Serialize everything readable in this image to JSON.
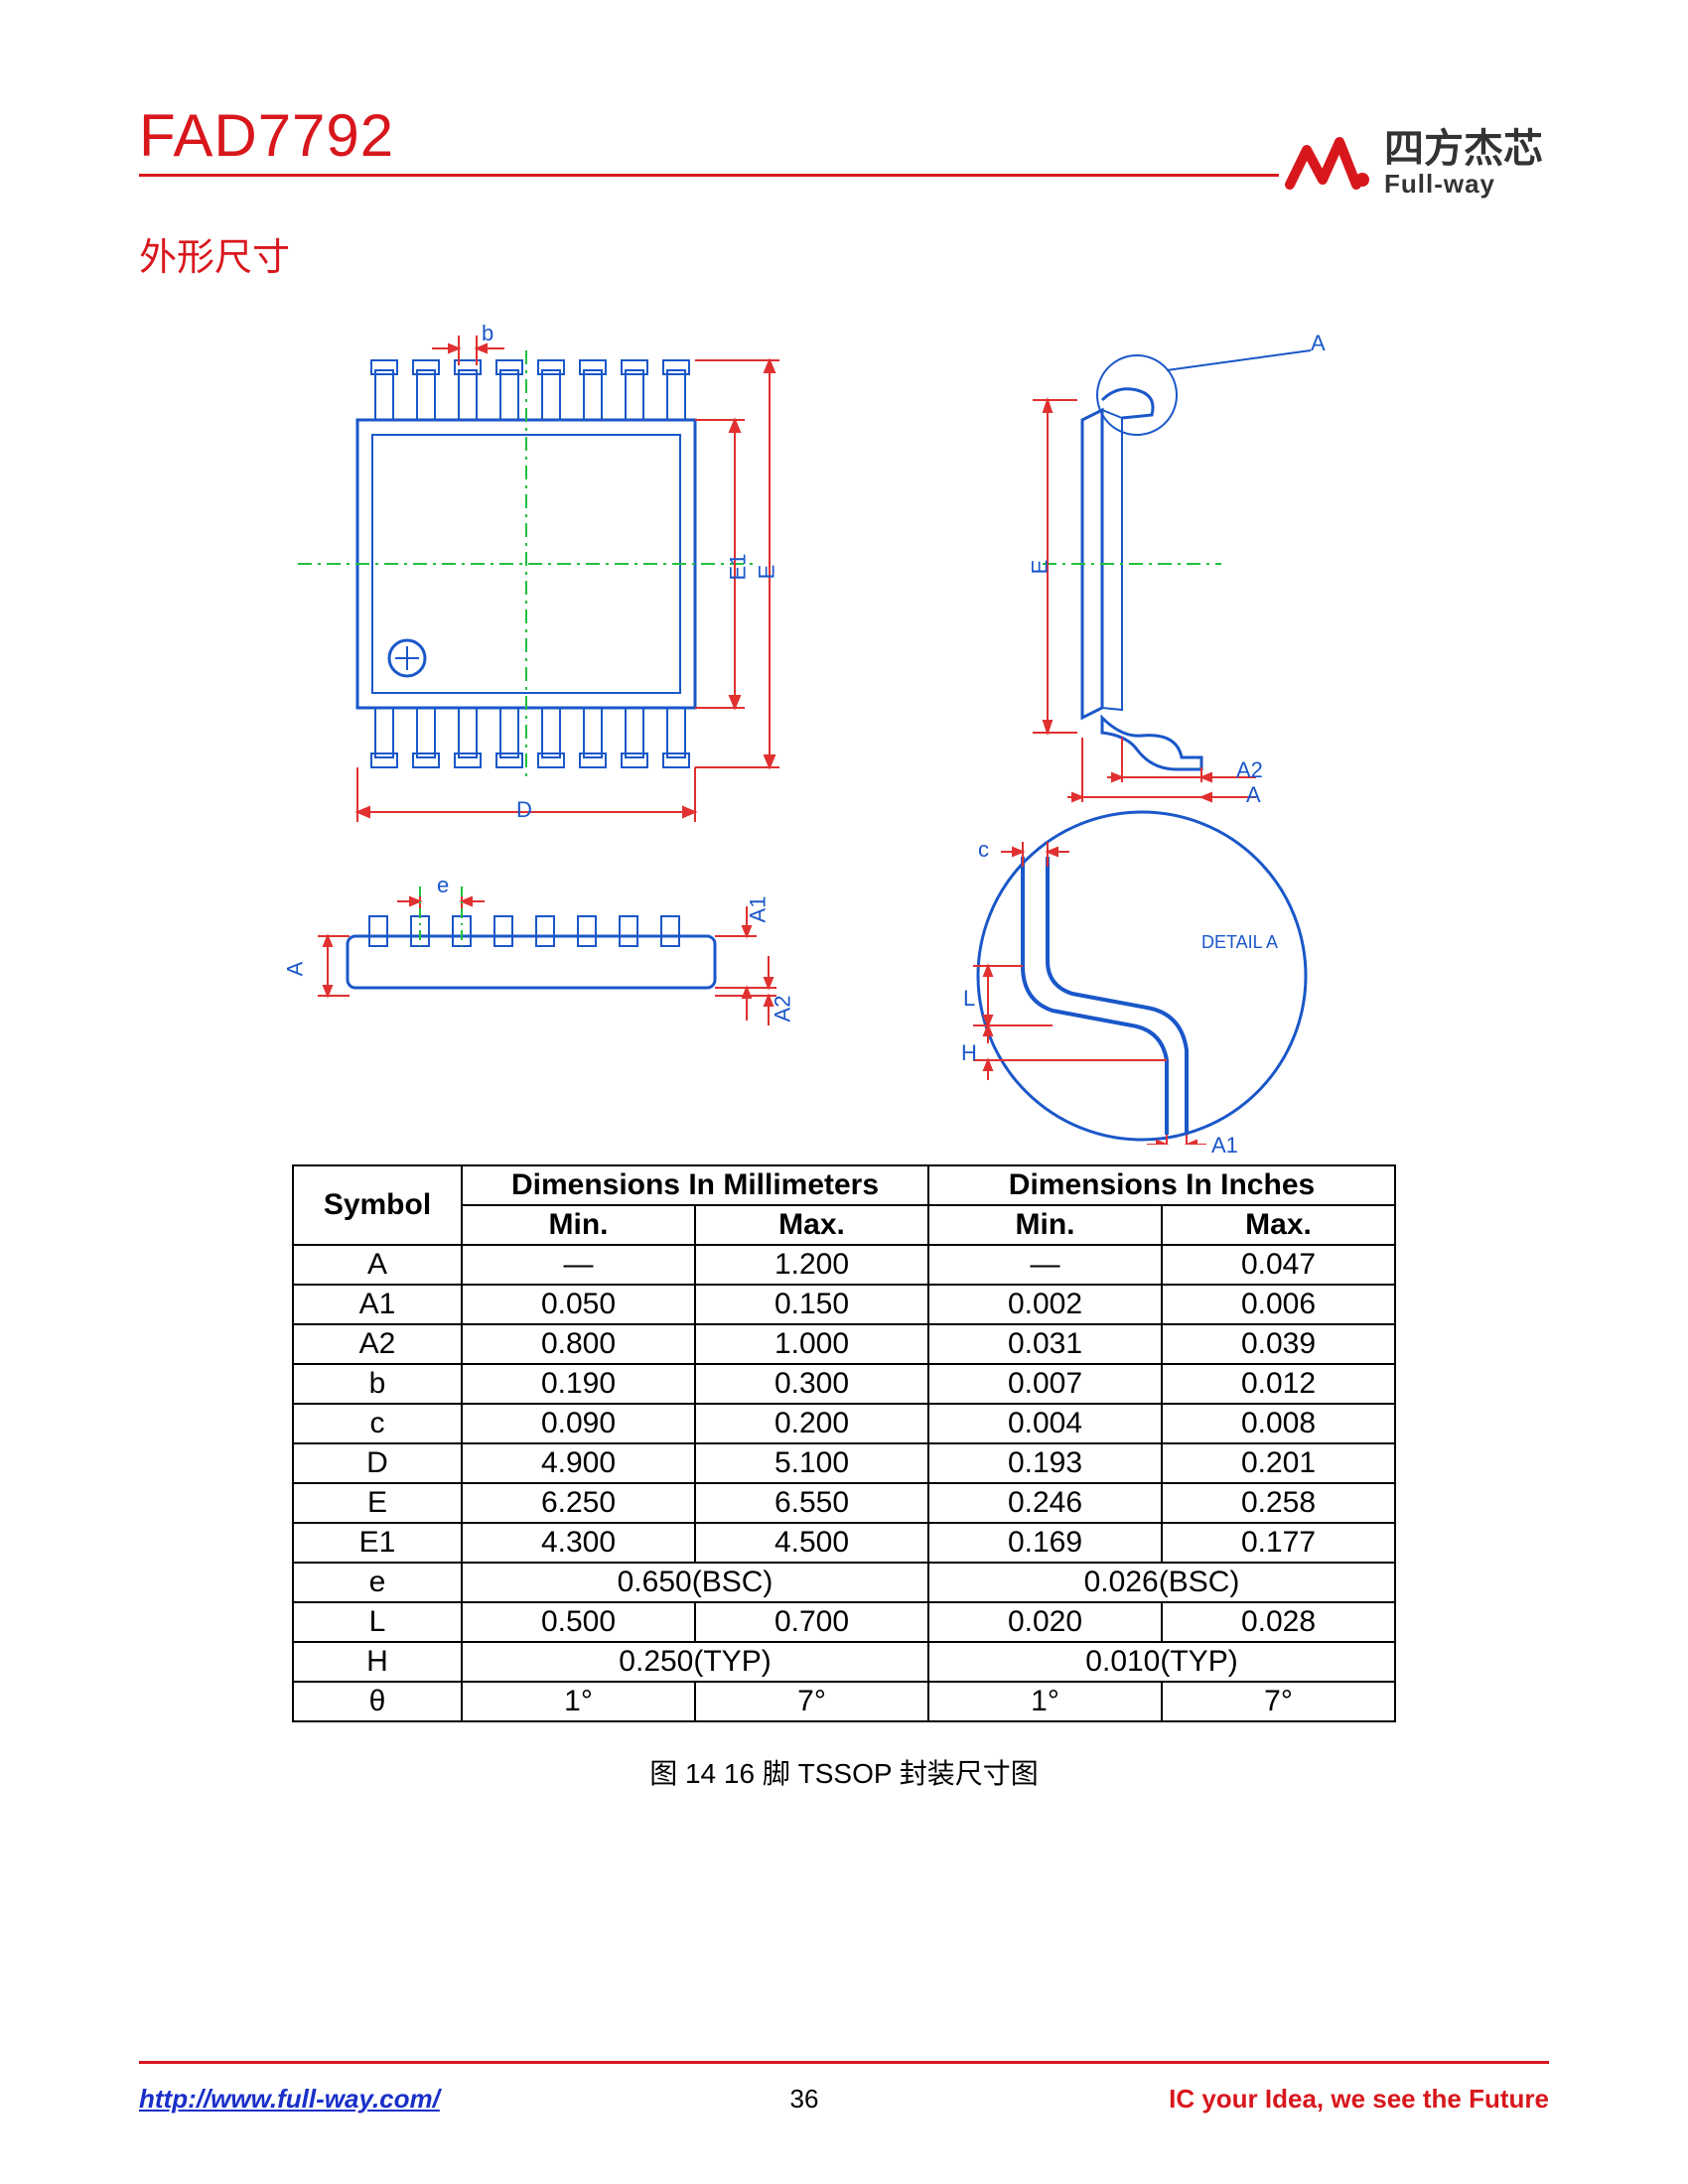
{
  "header": {
    "part_number": "FAD7792",
    "logo_cn": "四方杰芯",
    "logo_en": "Full-way"
  },
  "section_title": "外形尺寸",
  "diagram": {
    "colors": {
      "outline": "#1a57c9",
      "dim_line": "#e03030",
      "center_line": "#20c040",
      "detail_circle": "#1a57c9",
      "label": "#1a57c9"
    },
    "labels": {
      "b": "b",
      "D": "D",
      "E": "E",
      "E1": "E1",
      "e": "e",
      "A": "A",
      "A1": "A1",
      "A2": "A2",
      "c": "c",
      "L": "L",
      "H": "H",
      "detail_a": "DETAIL A",
      "callout_a": "A"
    }
  },
  "table": {
    "header_symbol": "Symbol",
    "header_mm": "Dimensions In Millimeters",
    "header_in": "Dimensions In Inches",
    "header_min": "Min.",
    "header_max": "Max.",
    "rows": [
      {
        "sym": "A",
        "mm_min": "—",
        "mm_max": "1.200",
        "in_min": "—",
        "in_max": "0.047"
      },
      {
        "sym": "A1",
        "mm_min": "0.050",
        "mm_max": "0.150",
        "in_min": "0.002",
        "in_max": "0.006"
      },
      {
        "sym": "A2",
        "mm_min": "0.800",
        "mm_max": "1.000",
        "in_min": "0.031",
        "in_max": "0.039"
      },
      {
        "sym": "b",
        "mm_min": "0.190",
        "mm_max": "0.300",
        "in_min": "0.007",
        "in_max": "0.012"
      },
      {
        "sym": "c",
        "mm_min": "0.090",
        "mm_max": "0.200",
        "in_min": "0.004",
        "in_max": "0.008"
      },
      {
        "sym": "D",
        "mm_min": "4.900",
        "mm_max": "5.100",
        "in_min": "0.193",
        "in_max": "0.201"
      },
      {
        "sym": "E",
        "mm_min": "6.250",
        "mm_max": "6.550",
        "in_min": "0.246",
        "in_max": "0.258"
      },
      {
        "sym": "E1",
        "mm_min": "4.300",
        "mm_max": "4.500",
        "in_min": "0.169",
        "in_max": "0.177"
      },
      {
        "sym": "e",
        "mm_span": "0.650(BSC)",
        "in_span": "0.026(BSC)"
      },
      {
        "sym": "L",
        "mm_min": "0.500",
        "mm_max": "0.700",
        "in_min": "0.020",
        "in_max": "0.028"
      },
      {
        "sym": "H",
        "mm_span": "0.250(TYP)",
        "in_span": "0.010(TYP)"
      },
      {
        "sym": "θ",
        "mm_min": "1°",
        "mm_max": "7°",
        "in_min": "1°",
        "in_max": "7°"
      }
    ]
  },
  "caption": "图 14 16 脚 TSSOP 封装尺寸图",
  "footer": {
    "url_text": "http://www.full-way.com/",
    "page": "36",
    "slogan": "IC your Idea, we see the Future"
  }
}
